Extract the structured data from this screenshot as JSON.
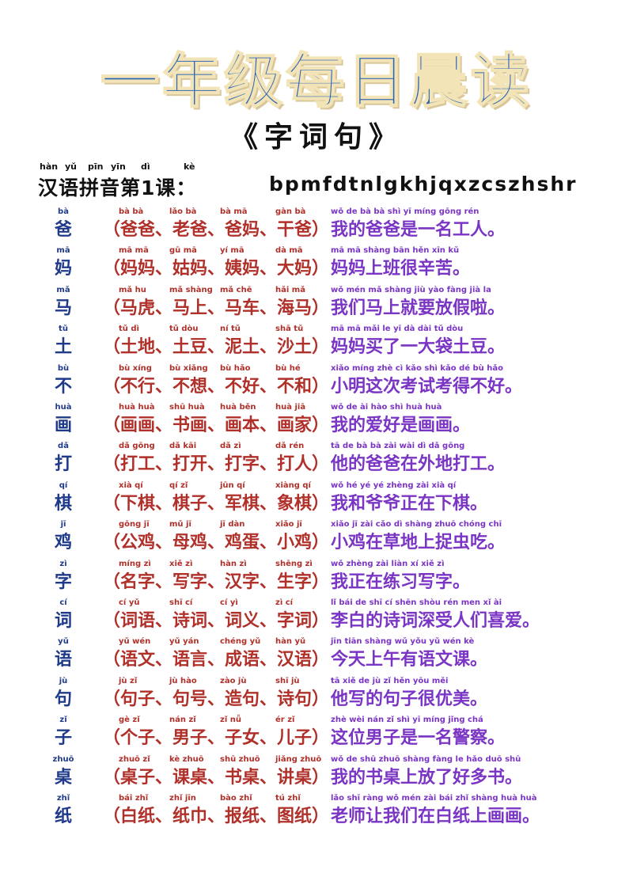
{
  "title": "一年级每日晨读",
  "subtitle": "《字词句》",
  "lesson": {
    "label": "汉语拼音第1课：",
    "letters": "bpmfdtnlgkhjqxzcszhshr",
    "pinyin": [
      "hàn",
      "yǔ",
      "pīn",
      "yīn",
      "dì",
      "kè"
    ]
  },
  "rows": [
    {
      "char": "爸",
      "char_py": "bà",
      "words_py": [
        "bà bà",
        "lǎo bà",
        "bà mā",
        "gàn bà"
      ],
      "words": "（爸爸、老爸、爸妈、干爸）",
      "sent_py": "wǒ de bà bà shì yī míng gōng rén",
      "sentence": "我的爸爸是一名工人。"
    },
    {
      "char": "妈",
      "char_py": "mā",
      "words_py": [
        "mā mā",
        "gū mā",
        "yí mā",
        "dà mā"
      ],
      "words": "（妈妈、姑妈、姨妈、大妈）",
      "sent_py": "mā mā shàng bān hěn xīn kǔ",
      "sentence": "妈妈上班很辛苦。"
    },
    {
      "char": "马",
      "char_py": "mǎ",
      "words_py": [
        "mǎ hu",
        "mǎ shàng",
        "mǎ chē",
        "hǎi mǎ"
      ],
      "words": "（马虎、马上、马车、海马）",
      "sent_py": "wǒ mén mǎ shàng jiù yào fàng jià la",
      "sentence": "我们马上就要放假啦。"
    },
    {
      "char": "土",
      "char_py": "tǔ",
      "words_py": [
        "tǔ dì",
        "tǔ dòu",
        "ní tǔ",
        "shā tǔ"
      ],
      "words": "（土地、土豆、泥土、沙土）",
      "sent_py": "mā mā mǎi le yī dà dài tǔ dòu",
      "sentence": "妈妈买了一大袋土豆。"
    },
    {
      "char": "不",
      "char_py": "bù",
      "words_py": [
        "bù xíng",
        "bù xiǎng",
        "bù hǎo",
        "bù hé"
      ],
      "words": "（不行、不想、不好、不和）",
      "sent_py": "xiǎo míng zhè cì kǎo shì kǎo dé bù hǎo",
      "sentence": "小明这次考试考得不好。"
    },
    {
      "char": "画",
      "char_py": "huà",
      "words_py": [
        "huà huà",
        "shū huà",
        "huà běn",
        "huà jiā"
      ],
      "words": "（画画、书画、画本、画家）",
      "sent_py": "wǒ de ài hào shì huà huà",
      "sentence": "我的爱好是画画。"
    },
    {
      "char": "打",
      "char_py": "dǎ",
      "words_py": [
        "dǎ gōng",
        "dǎ kāi",
        "dǎ zì",
        "dǎ rén"
      ],
      "words": "（打工、打开、打字、打人）",
      "sent_py": "tā de bà bà zài wài dì dǎ gōng",
      "sentence": "他的爸爸在外地打工。"
    },
    {
      "char": "棋",
      "char_py": "qí",
      "words_py": [
        "xià qí",
        "qí zǐ",
        "jūn qí",
        "xiàng qí"
      ],
      "words": "（下棋、棋子、军棋、象棋）",
      "sent_py": "wǒ hé yé yé zhèng zài xià qí",
      "sentence": "我和爷爷正在下棋。"
    },
    {
      "char": "鸡",
      "char_py": "jī",
      "words_py": [
        "gōng jī",
        "mǔ jī",
        "jī dàn",
        "xiǎo jī"
      ],
      "words": "（公鸡、母鸡、鸡蛋、小鸡）",
      "sent_py": "xiǎo jī zài cǎo dì shàng zhuō chóng chī",
      "sentence": "小鸡在草地上捉虫吃。"
    },
    {
      "char": "字",
      "char_py": "zì",
      "words_py": [
        "míng zì",
        "xiě zì",
        "hàn zì",
        "shēng zì"
      ],
      "words": "（名字、写字、汉字、生字）",
      "sent_py": "wǒ zhèng zài liàn xí xiě zì",
      "sentence": "我正在练习写字。"
    },
    {
      "char": "词",
      "char_py": "cí",
      "words_py": [
        "cí yǔ",
        "shī cí",
        "cí yì",
        "zì cí"
      ],
      "words": "（词语、诗词、词义、字词）",
      "sent_py": "lǐ bái de shī cí shēn shòu rén men xǐ ài",
      "sentence": "李白的诗词深受人们喜爱。"
    },
    {
      "char": "语",
      "char_py": "yǔ",
      "words_py": [
        "yǔ wén",
        "yǔ yán",
        "chéng yǔ",
        "hàn yǔ"
      ],
      "words": "（语文、语言、成语、汉语）",
      "sent_py": "jīn tiān shàng wǔ yǒu yǔ wén kè",
      "sentence": "今天上午有语文课。"
    },
    {
      "char": "句",
      "char_py": "jù",
      "words_py": [
        "jù zǐ",
        "jù hào",
        "zào jù",
        "shī jù"
      ],
      "words": "（句子、句号、造句、诗句）",
      "sent_py": "tā xiě de jù zǐ hěn yōu měi",
      "sentence": "他写的句子很优美。"
    },
    {
      "char": "子",
      "char_py": "zǐ",
      "words_py": [
        "gè zǐ",
        "nán zǐ",
        "zǐ nǚ",
        "ér zǐ"
      ],
      "words": "（个子、男子、子女、儿子）",
      "sent_py": "zhè wèi nán zǐ shì yī míng jǐng chá",
      "sentence": "这位男子是一名警察。"
    },
    {
      "char": "桌",
      "char_py": "zhuō",
      "words_py": [
        "zhuō zǐ",
        "kè zhuō",
        "shū zhuō",
        "jiǎng zhuō"
      ],
      "words": "（桌子、课桌、书桌、讲桌）",
      "sent_py": "wǒ de shū zhuō shàng fàng le hǎo duō shū",
      "sentence": "我的书桌上放了好多书。"
    },
    {
      "char": "纸",
      "char_py": "zhǐ",
      "words_py": [
        "bái zhǐ",
        "zhǐ jīn",
        "bào zhǐ",
        "tú zhǐ"
      ],
      "words": "（白纸、纸巾、报纸、图纸）",
      "sent_py": "lǎo shī ràng wǒ mén zài bái zhǐ shàng huà huà",
      "sentence": "老师让我们在白纸上画画。"
    }
  ]
}
